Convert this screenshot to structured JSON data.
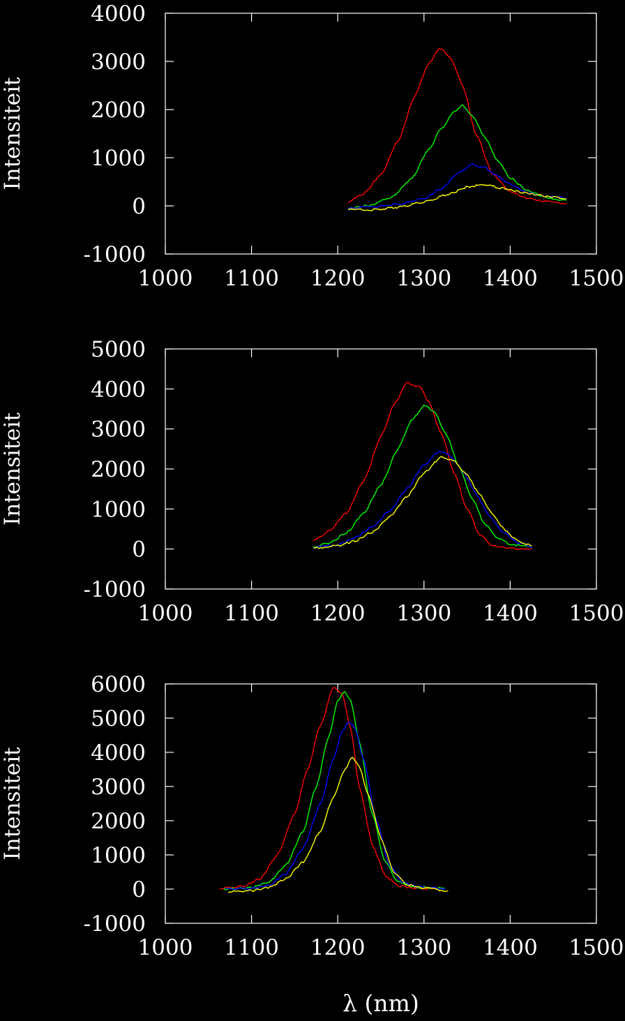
{
  "chart_data": [
    {
      "type": "line",
      "ylabel": "Intensiteit",
      "xlim": [
        1000,
        1500
      ],
      "ylim": [
        -1000,
        4000
      ],
      "xticks": [
        "1000",
        "1100",
        "1200",
        "1300",
        "1400",
        "1500"
      ],
      "yticks": [
        "-1000",
        "0",
        "1000",
        "2000",
        "3000",
        "4000"
      ],
      "series": [
        {
          "color": "#ff0000",
          "x": [
            1212,
            1230,
            1250,
            1270,
            1290,
            1305,
            1318,
            1330,
            1345,
            1360,
            1380,
            1400,
            1420,
            1440,
            1465
          ],
          "y": [
            80,
            250,
            650,
            1350,
            2300,
            2950,
            3280,
            3100,
            2500,
            1500,
            650,
            300,
            160,
            90,
            50
          ]
        },
        {
          "color": "#00ff00",
          "x": [
            1212,
            1235,
            1260,
            1285,
            1305,
            1320,
            1335,
            1345,
            1355,
            1370,
            1385,
            1400,
            1420,
            1440,
            1465
          ],
          "y": [
            -60,
            10,
            150,
            550,
            1150,
            1600,
            1950,
            2080,
            1900,
            1450,
            950,
            580,
            320,
            180,
            110
          ]
        },
        {
          "color": "#0000ff",
          "x": [
            1212,
            1240,
            1270,
            1300,
            1320,
            1340,
            1355,
            1370,
            1385,
            1400,
            1420,
            1440,
            1465
          ],
          "y": [
            -40,
            -20,
            30,
            150,
            350,
            680,
            860,
            800,
            620,
            450,
            280,
            200,
            160
          ]
        },
        {
          "color": "#ffff00",
          "x": [
            1212,
            1240,
            1270,
            1300,
            1330,
            1350,
            1365,
            1375,
            1390,
            1410,
            1430,
            1450,
            1465
          ],
          "y": [
            -80,
            -80,
            -30,
            80,
            250,
            390,
            430,
            420,
            370,
            290,
            230,
            180,
            150
          ]
        }
      ]
    },
    {
      "type": "line",
      "ylabel": "Intensiteit",
      "xlim": [
        1000,
        1500
      ],
      "ylim": [
        -1000,
        5000
      ],
      "xticks": [
        "1000",
        "1100",
        "1200",
        "1300",
        "1400",
        "1500"
      ],
      "yticks": [
        "-1000",
        "0",
        "1000",
        "2000",
        "3000",
        "4000",
        "5000"
      ],
      "series": [
        {
          "color": "#ff0000",
          "x": [
            1172,
            1190,
            1210,
            1230,
            1250,
            1265,
            1280,
            1295,
            1305,
            1320,
            1335,
            1350,
            1365,
            1380,
            1400,
            1425
          ],
          "y": [
            200,
            450,
            900,
            1700,
            2800,
            3600,
            4150,
            4050,
            3700,
            2900,
            1900,
            1000,
            350,
            80,
            20,
            10
          ]
        },
        {
          "color": "#00ff00",
          "x": [
            1172,
            1190,
            1210,
            1230,
            1250,
            1270,
            1285,
            1300,
            1312,
            1325,
            1340,
            1355,
            1370,
            1385,
            1400,
            1425
          ],
          "y": [
            50,
            150,
            400,
            900,
            1600,
            2500,
            3200,
            3580,
            3450,
            2900,
            2100,
            1300,
            650,
            280,
            120,
            40
          ]
        },
        {
          "color": "#0000ff",
          "x": [
            1172,
            1200,
            1220,
            1240,
            1260,
            1280,
            1300,
            1318,
            1330,
            1345,
            1360,
            1375,
            1390,
            1410,
            1425
          ],
          "y": [
            40,
            100,
            280,
            550,
            950,
            1500,
            2100,
            2450,
            2350,
            1950,
            1400,
            850,
            450,
            150,
            60
          ]
        },
        {
          "color": "#ffff00",
          "x": [
            1172,
            1200,
            1220,
            1240,
            1260,
            1280,
            1300,
            1320,
            1335,
            1350,
            1365,
            1380,
            1395,
            1410,
            1425
          ],
          "y": [
            20,
            80,
            200,
            420,
            800,
            1300,
            1900,
            2300,
            2200,
            1850,
            1350,
            850,
            450,
            180,
            80
          ]
        }
      ]
    },
    {
      "type": "line",
      "ylabel": "Intensiteit",
      "xlabel": "λ (nm)",
      "xlim": [
        1000,
        1500
      ],
      "ylim": [
        -1000,
        6000
      ],
      "xticks": [
        "1000",
        "1100",
        "1200",
        "1300",
        "1400",
        "1500"
      ],
      "yticks": [
        "-1000",
        "0",
        "1000",
        "2000",
        "3000",
        "4000",
        "5000",
        "6000"
      ],
      "series": [
        {
          "color": "#ff0000",
          "x": [
            1063,
            1090,
            1110,
            1130,
            1150,
            1165,
            1180,
            1195,
            1205,
            1215,
            1225,
            1240,
            1255,
            1270,
            1290,
            1320
          ],
          "y": [
            20,
            80,
            300,
            1000,
            2200,
            3500,
            4800,
            5900,
            5700,
            4700,
            3000,
            1300,
            400,
            100,
            20,
            10
          ]
        },
        {
          "color": "#00ff00",
          "x": [
            1068,
            1100,
            1120,
            1140,
            1160,
            1175,
            1190,
            1200,
            1208,
            1215,
            1225,
            1240,
            1255,
            1270,
            1290,
            1325
          ],
          "y": [
            0,
            40,
            200,
            700,
            1700,
            3000,
            4500,
            5500,
            5800,
            5500,
            4300,
            2200,
            800,
            220,
            60,
            20
          ]
        },
        {
          "color": "#0000ff",
          "x": [
            1070,
            1100,
            1120,
            1140,
            1160,
            1180,
            1195,
            1205,
            1213,
            1220,
            1230,
            1245,
            1260,
            1275,
            1295,
            1325
          ],
          "y": [
            0,
            20,
            100,
            450,
            1200,
            2500,
            3800,
            4600,
            4900,
            4700,
            3800,
            2000,
            700,
            200,
            60,
            10
          ]
        },
        {
          "color": "#ffff00",
          "x": [
            1073,
            1100,
            1120,
            1140,
            1160,
            1180,
            1195,
            1208,
            1217,
            1225,
            1235,
            1250,
            1265,
            1280,
            1300,
            1328
          ],
          "y": [
            -80,
            -50,
            50,
            300,
            800,
            1700,
            2700,
            3500,
            3850,
            3600,
            2800,
            1500,
            500,
            130,
            30,
            -50
          ]
        }
      ]
    }
  ]
}
